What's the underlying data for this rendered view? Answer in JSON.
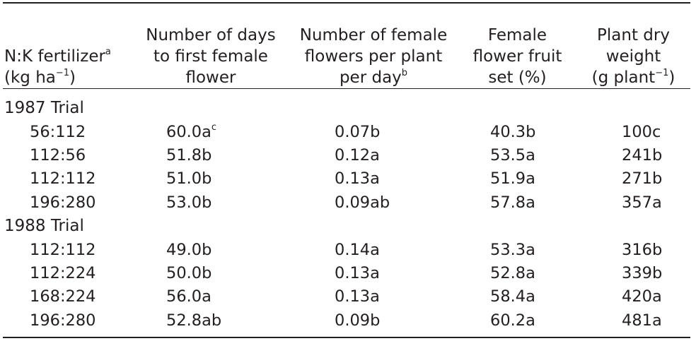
{
  "table": {
    "headers": {
      "treatment": {
        "line1": "N:K fertilizer",
        "sup1": "a",
        "line2_pre": "(kg ha",
        "line2_sup": "−1",
        "line2_post": ")"
      },
      "days": {
        "line1": "Number of days",
        "line2": "to first female",
        "line3": "flower"
      },
      "flowers": {
        "line1": "Number of female",
        "line2": "flowers per plant",
        "line3": "per day",
        "sup3": "b"
      },
      "fruitset": {
        "line1": "Female",
        "line2": "flower fruit",
        "line3": "set (%)"
      },
      "weight": {
        "line1": "Plant dry",
        "line2": "weight",
        "line3_pre": "(g plant",
        "line3_sup": "−1",
        "line3_post": ")"
      }
    },
    "groups": [
      {
        "label": "1987 Trial",
        "rows": [
          {
            "treatment": "56:112",
            "days": "60.0a",
            "days_sup": "c",
            "flowers": "0.07b",
            "fruitset": "40.3b",
            "weight": "100c"
          },
          {
            "treatment": "112:56",
            "days": "51.8b",
            "days_sup": "",
            "flowers": "0.12a",
            "fruitset": "53.5a",
            "weight": "241b"
          },
          {
            "treatment": "112:112",
            "days": "51.0b",
            "days_sup": "",
            "flowers": "0.13a",
            "fruitset": "51.9a",
            "weight": "271b"
          },
          {
            "treatment": "196:280",
            "days": "53.0b",
            "days_sup": "",
            "flowers": "0.09ab",
            "fruitset": "57.8a",
            "weight": "357a"
          }
        ]
      },
      {
        "label": "1988 Trial",
        "rows": [
          {
            "treatment": "112:112",
            "days": "49.0b",
            "days_sup": "",
            "flowers": "0.14a",
            "fruitset": "53.3a",
            "weight": "316b"
          },
          {
            "treatment": "112:224",
            "days": "50.0b",
            "days_sup": "",
            "flowers": "0.13a",
            "fruitset": "52.8a",
            "weight": "339b"
          },
          {
            "treatment": "168:224",
            "days": "56.0a",
            "days_sup": "",
            "flowers": "0.13a",
            "fruitset": "58.4a",
            "weight": "420a"
          },
          {
            "treatment": "196:280",
            "days": "52.8ab",
            "days_sup": "",
            "flowers": "0.09b",
            "fruitset": "60.2a",
            "weight": "481a"
          }
        ]
      }
    ]
  }
}
